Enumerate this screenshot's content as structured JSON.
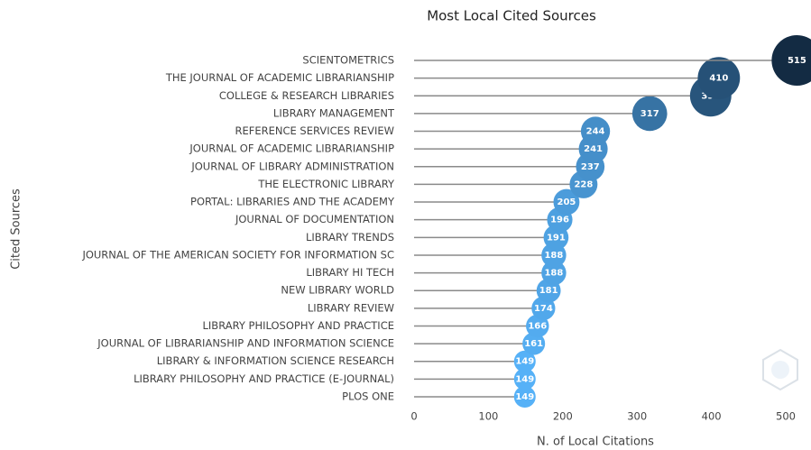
{
  "chart_data": {
    "type": "lollipop",
    "title": "Most Local Cited Sources",
    "x_label": "N. of Local Citations",
    "y_label": "Cited Sources",
    "categories": [
      "SCIENTOMETRICS",
      "THE JOURNAL OF ACADEMIC LIBRARIANSHIP",
      "COLLEGE & RESEARCH LIBRARIES",
      "LIBRARY MANAGEMENT",
      "REFERENCE SERVICES REVIEW",
      "JOURNAL OF ACADEMIC LIBRARIANSHIP",
      "JOURNAL OF LIBRARY ADMINISTRATION",
      "THE ELECTRONIC LIBRARY",
      "PORTAL: LIBRARIES AND THE ACADEMY",
      "JOURNAL OF DOCUMENTATION",
      "LIBRARY TRENDS",
      "JOURNAL OF THE AMERICAN SOCIETY FOR INFORMATION SC",
      "LIBRARY HI TECH",
      "NEW LIBRARY WORLD",
      "LIBRARY REVIEW",
      "LIBRARY PHILOSOPHY AND PRACTICE",
      "JOURNAL OF LIBRARIANSHIP AND INFORMATION SCIENCE",
      "LIBRARY & INFORMATION SCIENCE RESEARCH",
      "LIBRARY PHILOSOPHY AND PRACTICE (E-JOURNAL)",
      "PLOS ONE"
    ],
    "values": [
      515,
      410,
      399,
      317,
      244,
      241,
      237,
      228,
      205,
      196,
      191,
      188,
      188,
      181,
      174,
      166,
      161,
      149,
      149,
      149
    ],
    "color_low": "#56b1f7",
    "color_high": "#132b43",
    "line_color": "#8a8a8a",
    "xlim": [
      0,
      520
    ],
    "xticks": [
      0,
      100,
      200,
      300,
      400,
      500
    ]
  }
}
